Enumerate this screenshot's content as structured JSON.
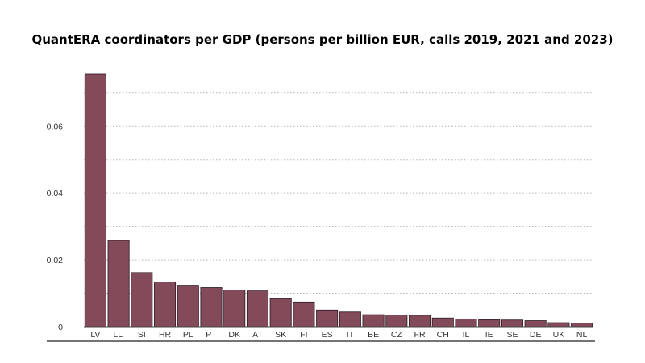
{
  "chart_data": {
    "type": "bar",
    "title": "QuantERA coordinators per GDP (persons per billion EUR, calls 2019, 2021 and 2023)",
    "xlabel": "",
    "ylabel": "",
    "categories": [
      "LV",
      "LU",
      "SI",
      "HR",
      "PL",
      "PT",
      "DK",
      "AT",
      "SK",
      "FI",
      "ES",
      "IT",
      "BE",
      "CZ",
      "FR",
      "CH",
      "IL",
      "IE",
      "SE",
      "DE",
      "UK",
      "NL"
    ],
    "values": [
      0.0755,
      0.0258,
      0.0162,
      0.0134,
      0.0124,
      0.0117,
      0.011,
      0.0107,
      0.0084,
      0.0074,
      0.005,
      0.0044,
      0.0036,
      0.0035,
      0.0034,
      0.0026,
      0.0023,
      0.0021,
      0.002,
      0.0018,
      0.0012,
      0.0011
    ],
    "ylim": [
      0,
      0.0755
    ],
    "yticks": [
      0,
      0.02,
      0.04,
      0.06
    ],
    "ytick_labels": [
      "0",
      "0.02",
      "0.04",
      "0.06"
    ],
    "grid": true,
    "bar_color": "#834a5a",
    "bar_edge_color": "#2b1a20"
  }
}
